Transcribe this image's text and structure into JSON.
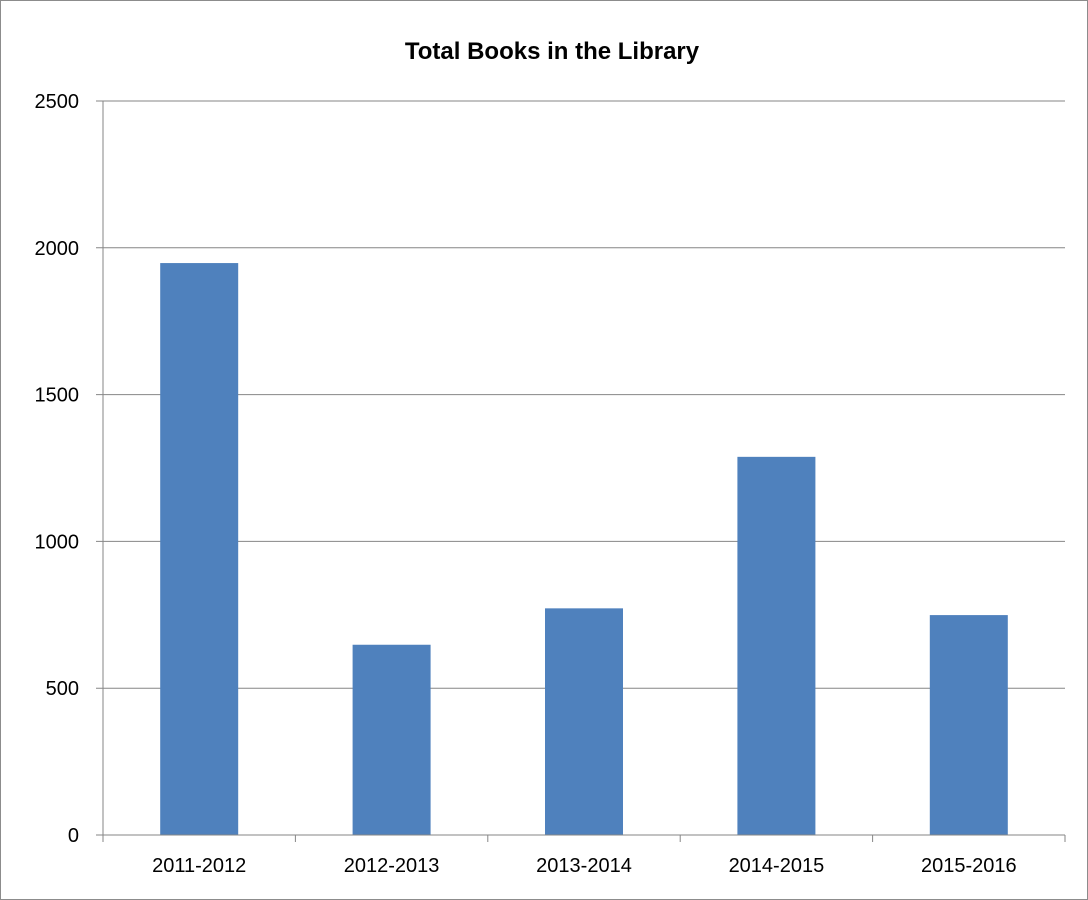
{
  "chart_data": {
    "type": "bar",
    "title": "Total Books in the Library",
    "categories": [
      "2011-2012",
      "2012-2013",
      "2013-2014",
      "2014-2015",
      "2015-2016"
    ],
    "values": [
      1948,
      648,
      772,
      1288,
      749
    ],
    "ylim": [
      0,
      2500
    ],
    "yticks": [
      "0",
      "500",
      "1000",
      "1500",
      "2000",
      "2500"
    ],
    "grid": true,
    "legend": "none",
    "bar_color": "#4F81BD",
    "grid_color": "#868686"
  }
}
